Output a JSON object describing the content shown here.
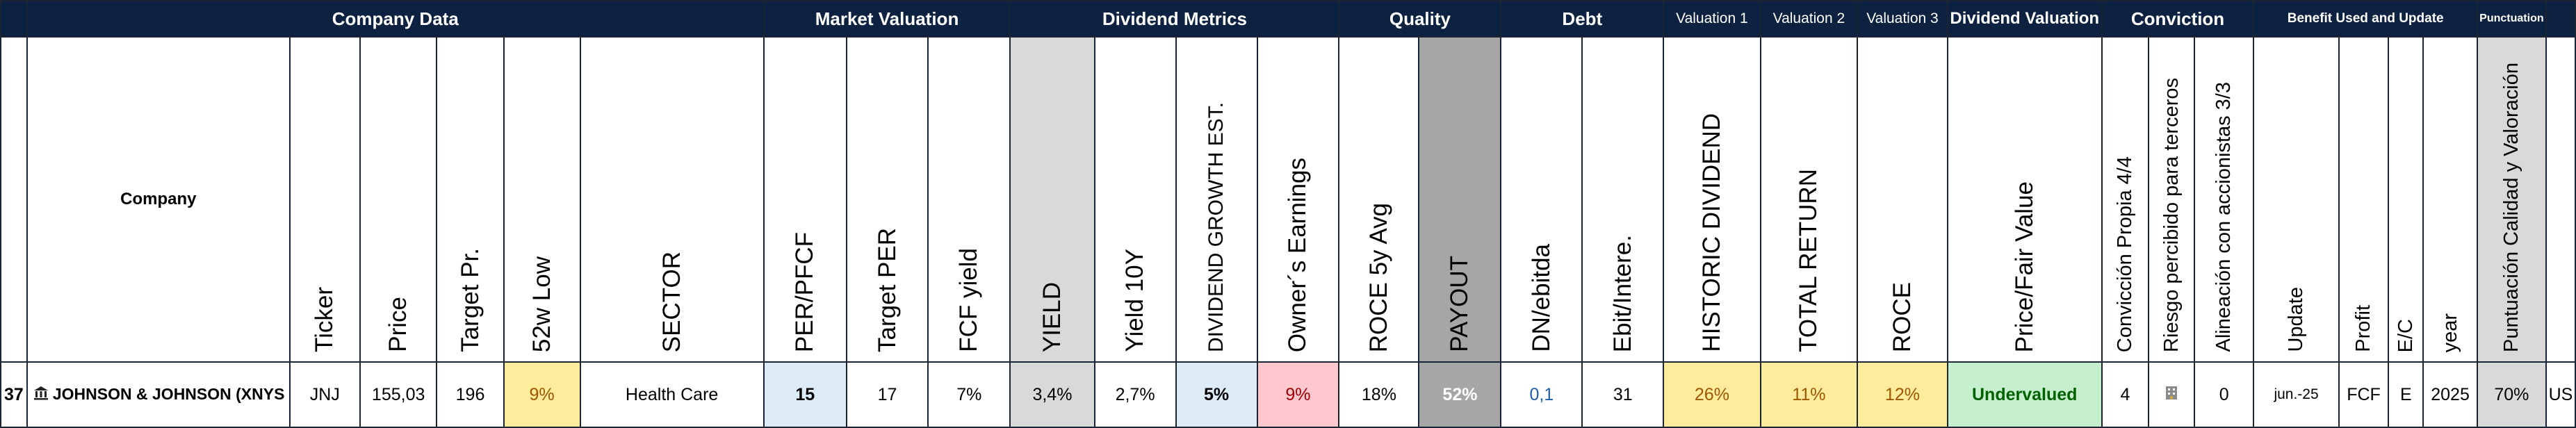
{
  "groups": {
    "company_data": "Company Data",
    "market_valuation": "Market Valuation",
    "dividend_metrics": "Dividend Metrics",
    "quality": "Quality",
    "debt": "Debt",
    "valuation1": "Valuation 1",
    "valuation2": "Valuation 2",
    "valuation3": "Valuation 3",
    "dividend_valuation": "Dividend Valuation",
    "conviction": "Conviction",
    "benefit": "Benefit Used and Update",
    "punctuation": "Punctuation"
  },
  "headers": {
    "company": "Company",
    "ticker": "Ticker",
    "price": "Price",
    "target_pr": "Target Pr.",
    "low52": "52w Low",
    "sector": "SECTOR",
    "per_pfcf": "PER/PFCF",
    "target_per": "Target PER",
    "fcf_yield": "FCF yield",
    "yield": "YIELD",
    "yield10y": "Yield 10Y",
    "div_growth": "DIVIDEND GROWTH EST.",
    "owners_earnings": "Owner´s Earnings",
    "roce5y": "ROCE 5y Avg",
    "payout": "PAYOUT",
    "dn_ebitda": "DN/ebitda",
    "ebit_inter": "Ebit/Intere.",
    "historic_div": "HISTORIC DIVIDEND",
    "total_return": "TOTAL RETURN",
    "roce": "ROCE",
    "price_fair": "Price/Fair Value",
    "conv_propia": "Convicción Propia 4/4",
    "riesgo": "Riesgo percibido para terceros",
    "alineacion": "Alineación con accionistas 3/3",
    "update": "Update",
    "profit": "Profit",
    "ec": "E/C",
    "year": "year",
    "puntuacion": "Puntuación Calidad y Valoración"
  },
  "row": {
    "num": "37",
    "company": "JOHNSON & JOHNSON (XNYS",
    "company_icon": "bank-icon",
    "ticker": "JNJ",
    "price": "155,03",
    "target_pr": "196",
    "low52": "9%",
    "sector": "Health Care",
    "per_pfcf": "15",
    "target_per": "17",
    "fcf_yield": "7%",
    "yield": "3,4%",
    "yield10y": "2,7%",
    "div_growth": "5%",
    "owners_earnings": "9%",
    "roce5y": "18%",
    "payout": "52%",
    "dn_ebitda": "0,1",
    "ebit_inter": "31",
    "historic_div": "26%",
    "total_return": "11%",
    "roce": "12%",
    "price_fair": "Undervalued",
    "conv_propia": "4",
    "riesgo_icon": "building-icon",
    "alineacion": "0",
    "update": "jun.-25",
    "profit": "FCF",
    "ec": "E",
    "year": "2025",
    "puntuacion": "70%",
    "country": "US"
  },
  "colors": {
    "header_bg": "#0d2240",
    "yellow": "#ffeb9c",
    "blue": "#ddebf7",
    "pink": "#ffc7ce",
    "green": "#c6efce",
    "gray": "#d9d9d9",
    "dark_gray": "#a6a6a6"
  }
}
